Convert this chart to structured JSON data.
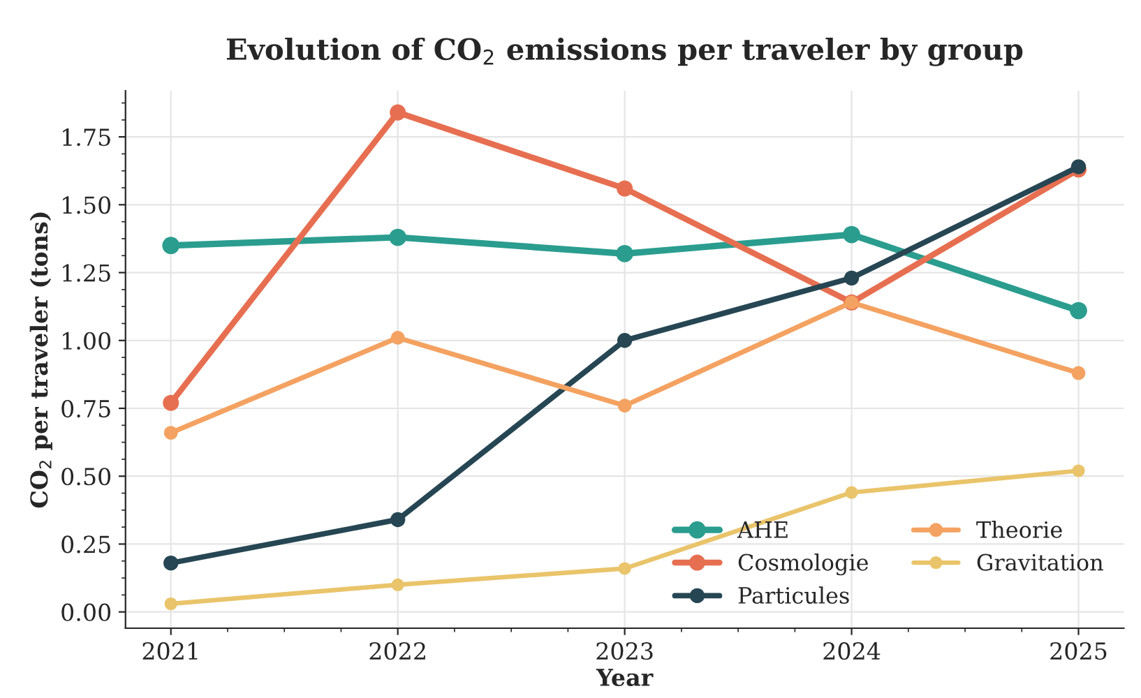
{
  "chart_data": {
    "type": "line",
    "title": "Evolution of CO$_{2}$ emissions per traveler by group",
    "xlabel": "Year",
    "ylabel": "CO$_{2}$ per traveler (tons)",
    "x": [
      2021,
      2022,
      2023,
      2024,
      2025
    ],
    "series": [
      {
        "name": "AHE",
        "color": "#2a9d8f",
        "values": [
          1.35,
          1.38,
          1.32,
          1.39,
          1.11
        ]
      },
      {
        "name": "Cosmologie",
        "color": "#e76f51",
        "values": [
          0.77,
          1.84,
          1.56,
          1.14,
          1.63
        ]
      },
      {
        "name": "Particules",
        "color": "#264653",
        "values": [
          0.18,
          0.34,
          1.0,
          1.23,
          1.64
        ]
      },
      {
        "name": "Theorie",
        "color": "#f4a261",
        "values": [
          0.66,
          1.01,
          0.76,
          1.14,
          0.88
        ]
      },
      {
        "name": "Gravitation",
        "color": "#e9c46a",
        "values": [
          0.03,
          0.1,
          0.16,
          0.44,
          0.52
        ]
      }
    ],
    "xlim": [
      2020.8,
      2025.2
    ],
    "xticks": [
      2021,
      2022,
      2023,
      2024,
      2025
    ],
    "ylim": [
      -0.06,
      1.92
    ],
    "yticks": [
      {
        "value": 0,
        "label": "0.00"
      },
      {
        "value": 0.25,
        "label": "0.25"
      },
      {
        "value": 0.5,
        "label": "0.50"
      },
      {
        "value": 0.75,
        "label": "0.75"
      },
      {
        "value": 1,
        "label": "1.00"
      },
      {
        "value": 1.25,
        "label": "1.25"
      },
      {
        "value": 1.5,
        "label": "1.50"
      },
      {
        "value": 1.75,
        "label": "1.75"
      }
    ],
    "grid": true,
    "legend": "bottom right",
    "marker": "circle",
    "line_style": "solid"
  }
}
